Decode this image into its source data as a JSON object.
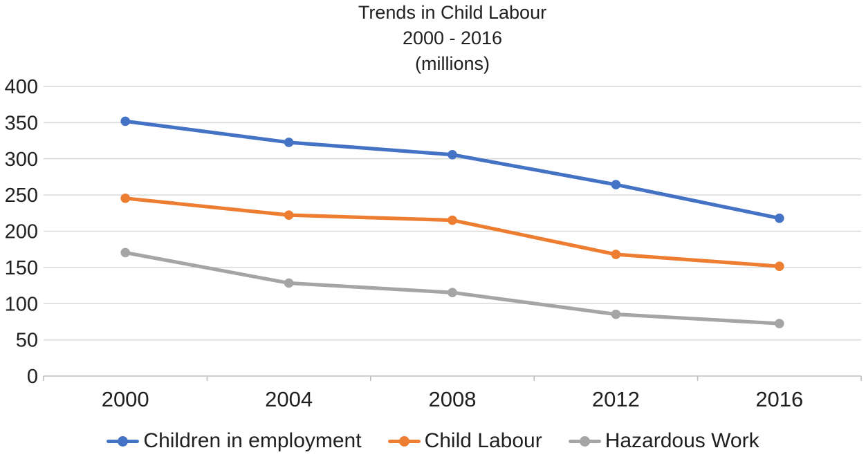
{
  "chart_data": {
    "type": "line",
    "title": "Trends in Child Labour",
    "subtitle": "2000 - 2016",
    "unit_label": "(millions)",
    "categories": [
      "2000",
      "2004",
      "2008",
      "2012",
      "2016"
    ],
    "series": [
      {
        "name": "Children in employment",
        "color": "#4472C4",
        "values": [
          351.9,
          322.7,
          305.7,
          264.4,
          218.0
        ]
      },
      {
        "name": "Child Labour",
        "color": "#ED7D31",
        "values": [
          245.5,
          222.3,
          215.2,
          168.0,
          151.6
        ]
      },
      {
        "name": "Hazardous Work",
        "color": "#A5A5A5",
        "values": [
          170.5,
          128.4,
          115.3,
          85.3,
          72.5
        ]
      }
    ],
    "ylim": [
      0,
      400
    ],
    "y_step": 50,
    "grid": true,
    "legend_position": "bottom",
    "marker": "circle",
    "colors": {
      "gridline": "#D9D9D9",
      "axis": "#BFBFBF",
      "text": "#202020"
    }
  }
}
